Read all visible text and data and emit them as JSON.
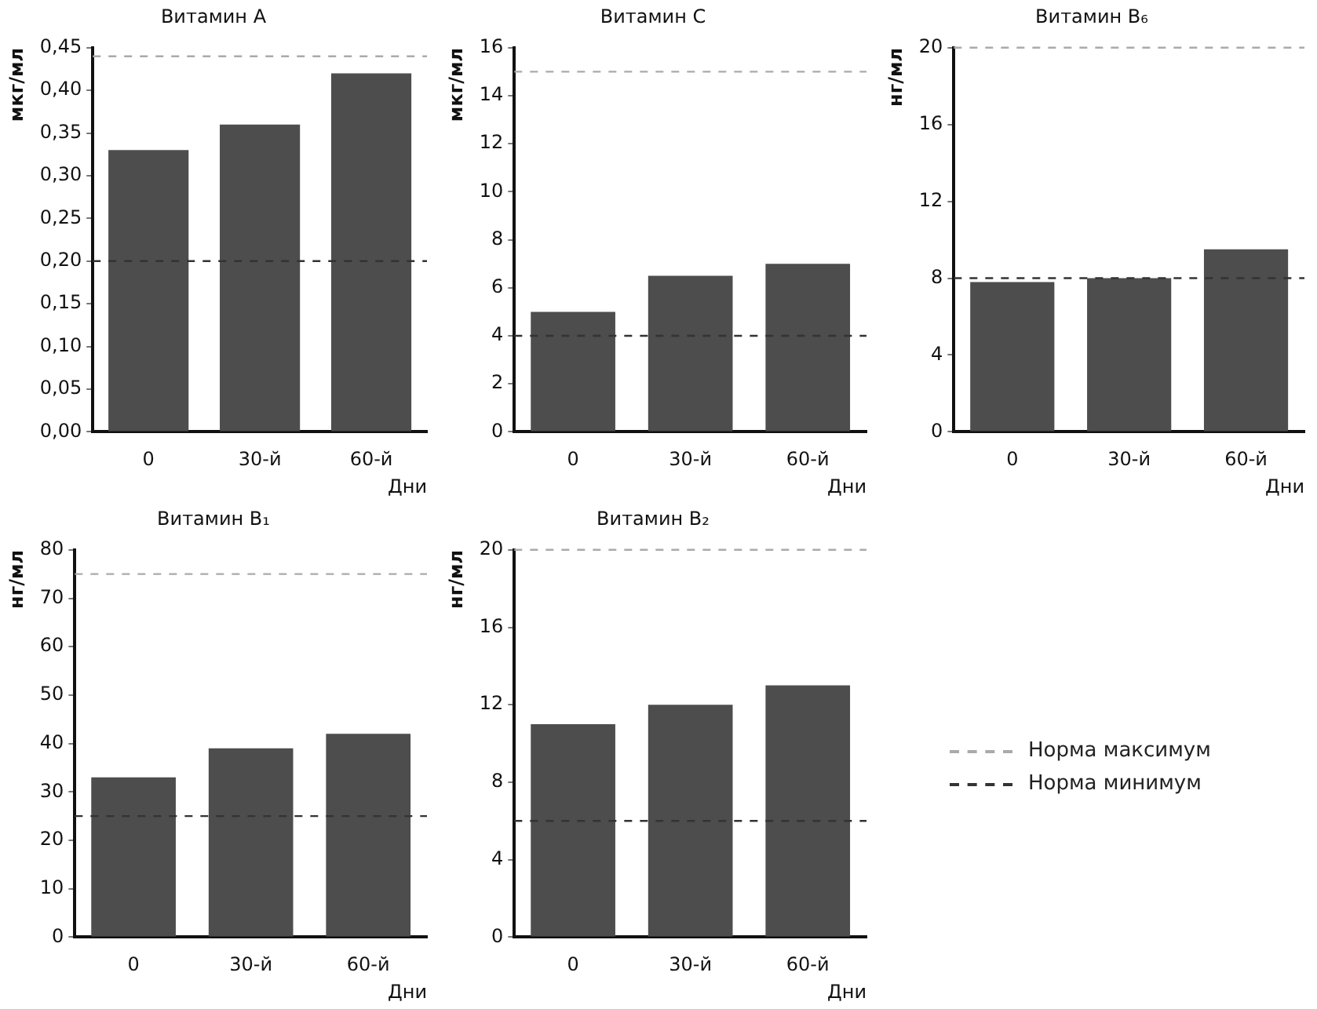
{
  "chart_data": [
    {
      "type": "bar",
      "title": "Витамин A",
      "ylabel": "мкг/мл",
      "xlabel": "Дни",
      "categories": [
        "0",
        "30-й",
        "60-й"
      ],
      "values": [
        0.33,
        0.36,
        0.42
      ],
      "color": "#4d4d4d",
      "ylim": [
        0,
        0.45
      ],
      "yticks": [
        {
          "value": 0,
          "label": "0,00"
        },
        {
          "value": 0.05,
          "label": "0,05"
        },
        {
          "value": 0.1,
          "label": "0,10"
        },
        {
          "value": 0.15,
          "label": "0,15"
        },
        {
          "value": 0.2,
          "label": "0,20"
        },
        {
          "value": 0.25,
          "label": "0,25"
        },
        {
          "value": 0.3,
          "label": "0,30"
        },
        {
          "value": 0.35,
          "label": "0,35"
        },
        {
          "value": 0.4,
          "label": "0,40"
        },
        {
          "value": 0.45,
          "label": "0,45"
        }
      ],
      "grid": false,
      "legend": false,
      "ref_lines": [
        {
          "axis": "y",
          "value": 0.44,
          "color": "#aaaaaa",
          "line_style": "dashed"
        },
        {
          "axis": "y",
          "value": 0.2,
          "color": "#333333",
          "line_style": "dashed"
        }
      ]
    },
    {
      "type": "bar",
      "title": "Витамин C",
      "ylabel": "мкг/мл",
      "xlabel": "Дни",
      "categories": [
        "0",
        "30-й",
        "60-й"
      ],
      "values": [
        5,
        6.5,
        7
      ],
      "color": "#4d4d4d",
      "ylim": [
        0,
        16
      ],
      "yticks": [
        0,
        2,
        4,
        6,
        8,
        10,
        12,
        14,
        16
      ],
      "grid": false,
      "legend": false,
      "ref_lines": [
        {
          "axis": "y",
          "value": 15,
          "color": "#aaaaaa",
          "line_style": "dashed"
        },
        {
          "axis": "y",
          "value": 4,
          "color": "#333333",
          "line_style": "dashed"
        }
      ]
    },
    {
      "type": "bar",
      "title": "Витамин B₆",
      "ylabel": "нг/мл",
      "xlabel": "Дни",
      "categories": [
        "0",
        "30-й",
        "60-й"
      ],
      "values": [
        7.8,
        8,
        9.5
      ],
      "color": "#4d4d4d",
      "ylim": [
        0,
        20
      ],
      "yticks": [
        0,
        4,
        8,
        12,
        16,
        20
      ],
      "grid": false,
      "legend": false,
      "ref_lines": [
        {
          "axis": "y",
          "value": 20,
          "color": "#aaaaaa",
          "line_style": "dashed"
        },
        {
          "axis": "y",
          "value": 8,
          "color": "#333333",
          "line_style": "dashed"
        }
      ]
    },
    {
      "type": "bar",
      "title": "Витамин B₁",
      "ylabel": "нг/мл",
      "xlabel": "Дни",
      "categories": [
        "0",
        "30-й",
        "60-й"
      ],
      "values": [
        33,
        39,
        42
      ],
      "color": "#4d4d4d",
      "ylim": [
        0,
        80
      ],
      "yticks": [
        0,
        10,
        20,
        30,
        40,
        50,
        60,
        70,
        80
      ],
      "grid": false,
      "legend": false,
      "ref_lines": [
        {
          "axis": "y",
          "value": 75,
          "color": "#aaaaaa",
          "line_style": "dashed"
        },
        {
          "axis": "y",
          "value": 25,
          "color": "#333333",
          "line_style": "dashed"
        }
      ]
    },
    {
      "type": "bar",
      "title": "Витамин B₂",
      "ylabel": "нг/мл",
      "xlabel": "Дни",
      "categories": [
        "0",
        "30-й",
        "60-й"
      ],
      "values": [
        11,
        12,
        13
      ],
      "color": "#4d4d4d",
      "ylim": [
        0,
        20
      ],
      "yticks": [
        0,
        4,
        8,
        12,
        16,
        20
      ],
      "grid": false,
      "legend": false,
      "ref_lines": [
        {
          "axis": "y",
          "value": 20,
          "color": "#aaaaaa",
          "line_style": "dashed"
        },
        {
          "axis": "y",
          "value": 6,
          "color": "#333333",
          "line_style": "dashed"
        }
      ]
    },
    {
      "type": "other",
      "annotations": [
        "Норма максимум",
        "Норма минимум"
      ]
    }
  ]
}
